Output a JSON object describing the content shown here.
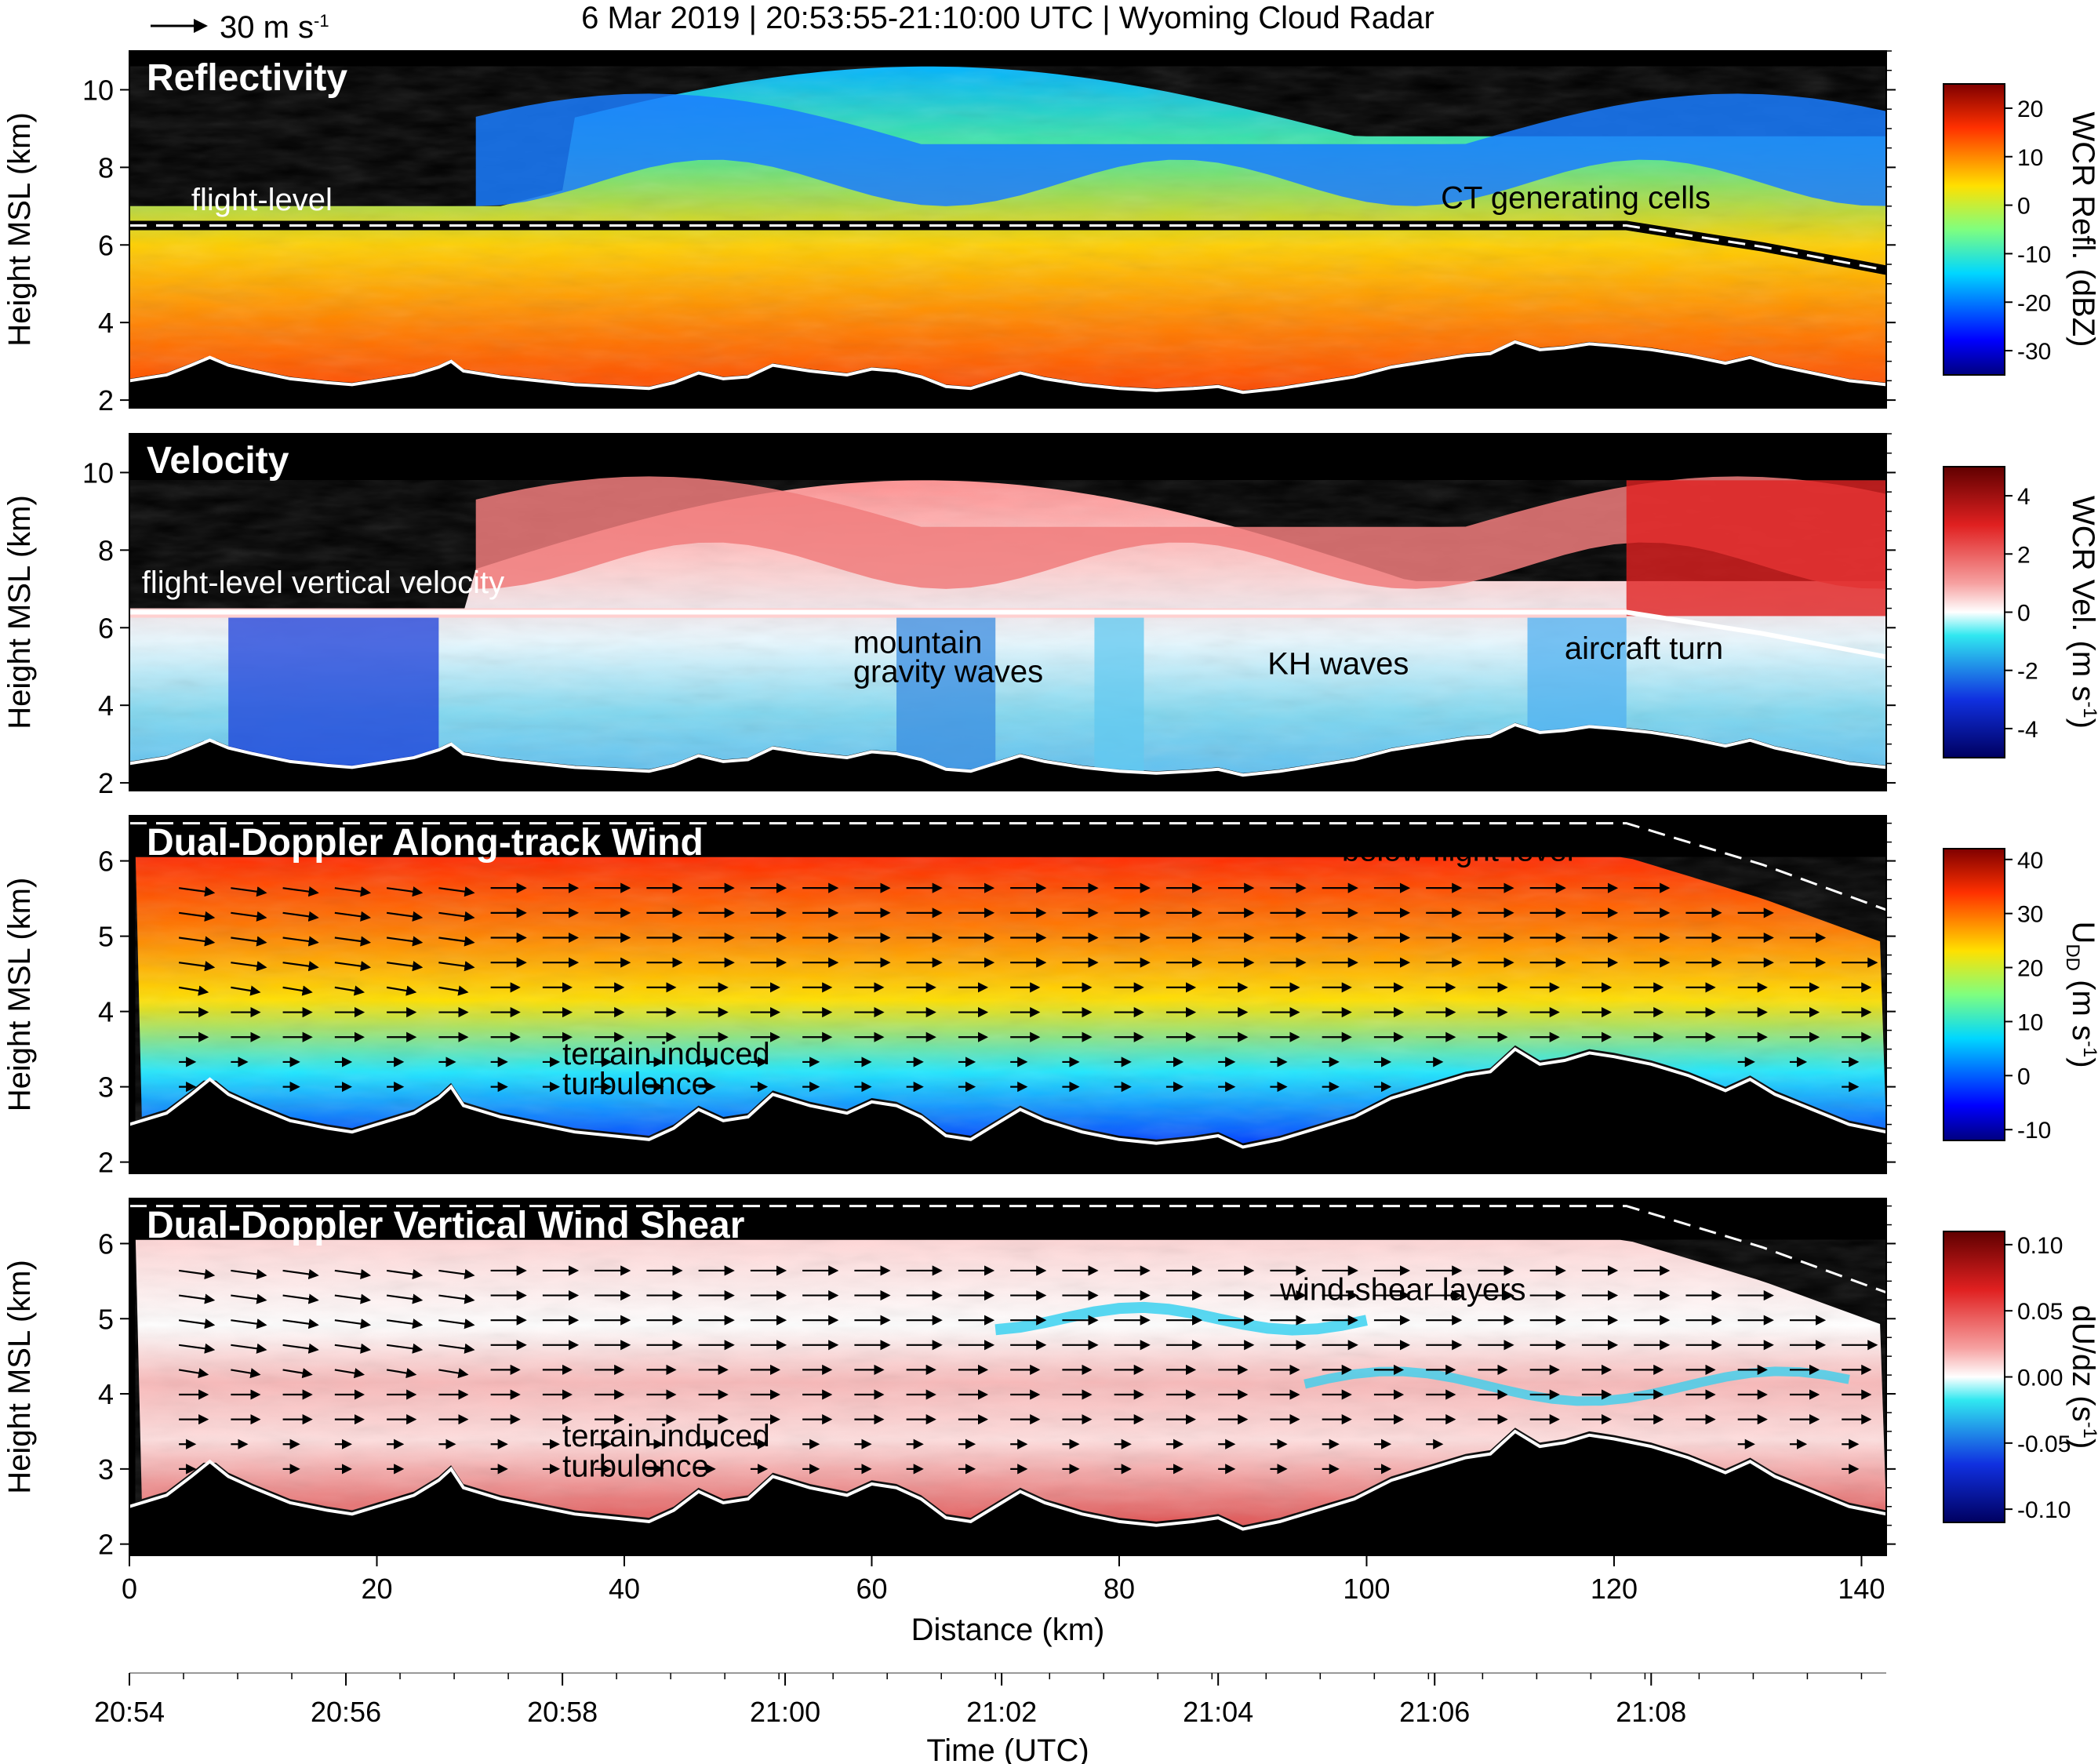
{
  "header": {
    "title": "6 Mar 2019  |  20:53:55-21:10:00 UTC  |  Wyoming Cloud Radar",
    "scale_label": "30 m s",
    "scale_sup": "-1"
  },
  "chart_data": {
    "type": "heatmap",
    "x_axis": {
      "label": "Distance (km)",
      "range": [
        0,
        142
      ],
      "ticks": [
        0,
        20,
        40,
        60,
        80,
        100,
        120,
        140
      ]
    },
    "time_axis": {
      "label": "Time (UTC)",
      "ticks": [
        {
          "km": 0,
          "label": "20:54"
        },
        {
          "km": 17.5,
          "label": "20:56"
        },
        {
          "km": 35,
          "label": "20:58"
        },
        {
          "km": 53,
          "label": "21:00"
        },
        {
          "km": 70.5,
          "label": "21:02"
        },
        {
          "km": 88,
          "label": "21:04"
        },
        {
          "km": 105.5,
          "label": "21:06"
        },
        {
          "km": 123,
          "label": "21:08"
        }
      ]
    },
    "terrain": [
      [
        0,
        2.5
      ],
      [
        3,
        2.65
      ],
      [
        5,
        2.9
      ],
      [
        6.5,
        3.1
      ],
      [
        8,
        2.9
      ],
      [
        10,
        2.75
      ],
      [
        13,
        2.55
      ],
      [
        16,
        2.45
      ],
      [
        18,
        2.4
      ],
      [
        20,
        2.5
      ],
      [
        23,
        2.65
      ],
      [
        25,
        2.85
      ],
      [
        26,
        3.0
      ],
      [
        27,
        2.75
      ],
      [
        30,
        2.6
      ],
      [
        33,
        2.5
      ],
      [
        36,
        2.4
      ],
      [
        39,
        2.35
      ],
      [
        42,
        2.3
      ],
      [
        44,
        2.45
      ],
      [
        46,
        2.7
      ],
      [
        48,
        2.55
      ],
      [
        50,
        2.6
      ],
      [
        52,
        2.9
      ],
      [
        55,
        2.75
      ],
      [
        58,
        2.65
      ],
      [
        60,
        2.8
      ],
      [
        62,
        2.75
      ],
      [
        64,
        2.6
      ],
      [
        66,
        2.35
      ],
      [
        68,
        2.3
      ],
      [
        70,
        2.5
      ],
      [
        72,
        2.7
      ],
      [
        74,
        2.55
      ],
      [
        77,
        2.4
      ],
      [
        80,
        2.3
      ],
      [
        83,
        2.25
      ],
      [
        86,
        2.3
      ],
      [
        88,
        2.35
      ],
      [
        90,
        2.2
      ],
      [
        93,
        2.3
      ],
      [
        96,
        2.45
      ],
      [
        99,
        2.6
      ],
      [
        102,
        2.85
      ],
      [
        105,
        3.0
      ],
      [
        108,
        3.15
      ],
      [
        110,
        3.2
      ],
      [
        112,
        3.5
      ],
      [
        114,
        3.3
      ],
      [
        116,
        3.35
      ],
      [
        118,
        3.45
      ],
      [
        120,
        3.4
      ],
      [
        123,
        3.3
      ],
      [
        126,
        3.15
      ],
      [
        129,
        2.95
      ],
      [
        131,
        3.1
      ],
      [
        133,
        2.9
      ],
      [
        136,
        2.7
      ],
      [
        139,
        2.5
      ],
      [
        142,
        2.4
      ]
    ],
    "flight_level": [
      [
        0,
        6.5
      ],
      [
        121,
        6.5
      ],
      [
        126,
        6.25
      ],
      [
        132,
        5.95
      ],
      [
        137,
        5.65
      ],
      [
        142,
        5.35
      ]
    ],
    "panels": [
      {
        "title": "Reflectivity",
        "ylabel": "Height MSL (km)",
        "ylim": [
          1.8,
          11.0
        ],
        "yticks": [
          2,
          4,
          6,
          8,
          10
        ],
        "colorbar": {
          "label": "WCR Refl. (dBZ)",
          "range": [
            -35,
            25
          ],
          "ticks": [
            20,
            10,
            0,
            -10,
            -20,
            -30
          ],
          "colormap": "jet"
        },
        "annotations": [
          {
            "text": "flight-level",
            "x_km": 5,
            "y_km": 6.9,
            "color": "#ffffff"
          },
          {
            "text": "CT generating cells",
            "x_km": 106,
            "y_km": 6.95,
            "color": "#000000"
          }
        ]
      },
      {
        "title": "Velocity",
        "ylabel": "Height MSL (km)",
        "ylim": [
          1.8,
          11.0
        ],
        "yticks": [
          2,
          4,
          6,
          8,
          10
        ],
        "colorbar": {
          "label": "WCR Vel. (m s",
          "label_sup": "-1",
          "label_end": ")",
          "range": [
            -5,
            5
          ],
          "ticks": [
            4,
            2,
            0,
            -2,
            -4
          ],
          "colormap": "diverging"
        },
        "annotations": [
          {
            "text": "flight-level vertical velocity",
            "x_km": 1,
            "y_km": 6.9,
            "color": "#ffffff"
          },
          {
            "text": "mountain",
            "x_km": 58.5,
            "y_km": 5.35,
            "color": "#000000"
          },
          {
            "text": "gravity waves",
            "x_km": 58.5,
            "y_km": 4.6,
            "color": "#000000"
          },
          {
            "text": "KH waves",
            "x_km": 92,
            "y_km": 4.8,
            "color": "#000000"
          },
          {
            "text": "aircraft turn",
            "x_km": 116,
            "y_km": 5.2,
            "color": "#000000"
          }
        ]
      },
      {
        "title": "Dual-Doppler Along-track Wind",
        "ylabel": "Height MSL (km)",
        "ylim": [
          1.85,
          6.6
        ],
        "yticks": [
          2,
          3,
          4,
          5,
          6
        ],
        "colorbar": {
          "label": "U",
          "label_sub": "DD",
          "label_mid": " (m s",
          "label_sup": "-1",
          "label_end": ")",
          "range": [
            -12,
            42
          ],
          "ticks": [
            40,
            30,
            20,
            10,
            0,
            -10
          ],
          "colormap": "jet"
        },
        "annotations": [
          {
            "text": "below flight-level",
            "x_km": 98,
            "y_km": 6.0,
            "color": "#000000"
          },
          {
            "text": "terrain induced",
            "x_km": 35,
            "y_km": 3.3,
            "color": "#000000"
          },
          {
            "text": "turbulence",
            "x_km": 35,
            "y_km": 2.9,
            "color": "#000000"
          }
        ]
      },
      {
        "title": "Dual-Doppler Vertical Wind Shear",
        "ylabel": "Height MSL (km)",
        "ylim": [
          1.85,
          6.6
        ],
        "yticks": [
          2,
          3,
          4,
          5,
          6
        ],
        "colorbar": {
          "label": "dU/dz (s",
          "label_sup": "-1",
          "label_end": ")",
          "range": [
            -0.11,
            0.11
          ],
          "ticks": [
            "0.10",
            "0.05",
            "0.00",
            "-0.05",
            "-0.10"
          ],
          "tick_values": [
            0.1,
            0.05,
            0.0,
            -0.05,
            -0.1
          ],
          "colormap": "diverging"
        },
        "annotations": [
          {
            "text": "wind-shear layers",
            "x_km": 93,
            "y_km": 5.25,
            "color": "#000000"
          },
          {
            "text": "terrain induced",
            "x_km": 35,
            "y_km": 3.3,
            "color": "#000000"
          },
          {
            "text": "turbulence",
            "x_km": 35,
            "y_km": 2.9,
            "color": "#000000"
          }
        ]
      }
    ]
  },
  "colors": {
    "background": "#000000",
    "terrain_line": "#ffffff",
    "flight_line": "#ffffff",
    "arrow": "#000000"
  }
}
